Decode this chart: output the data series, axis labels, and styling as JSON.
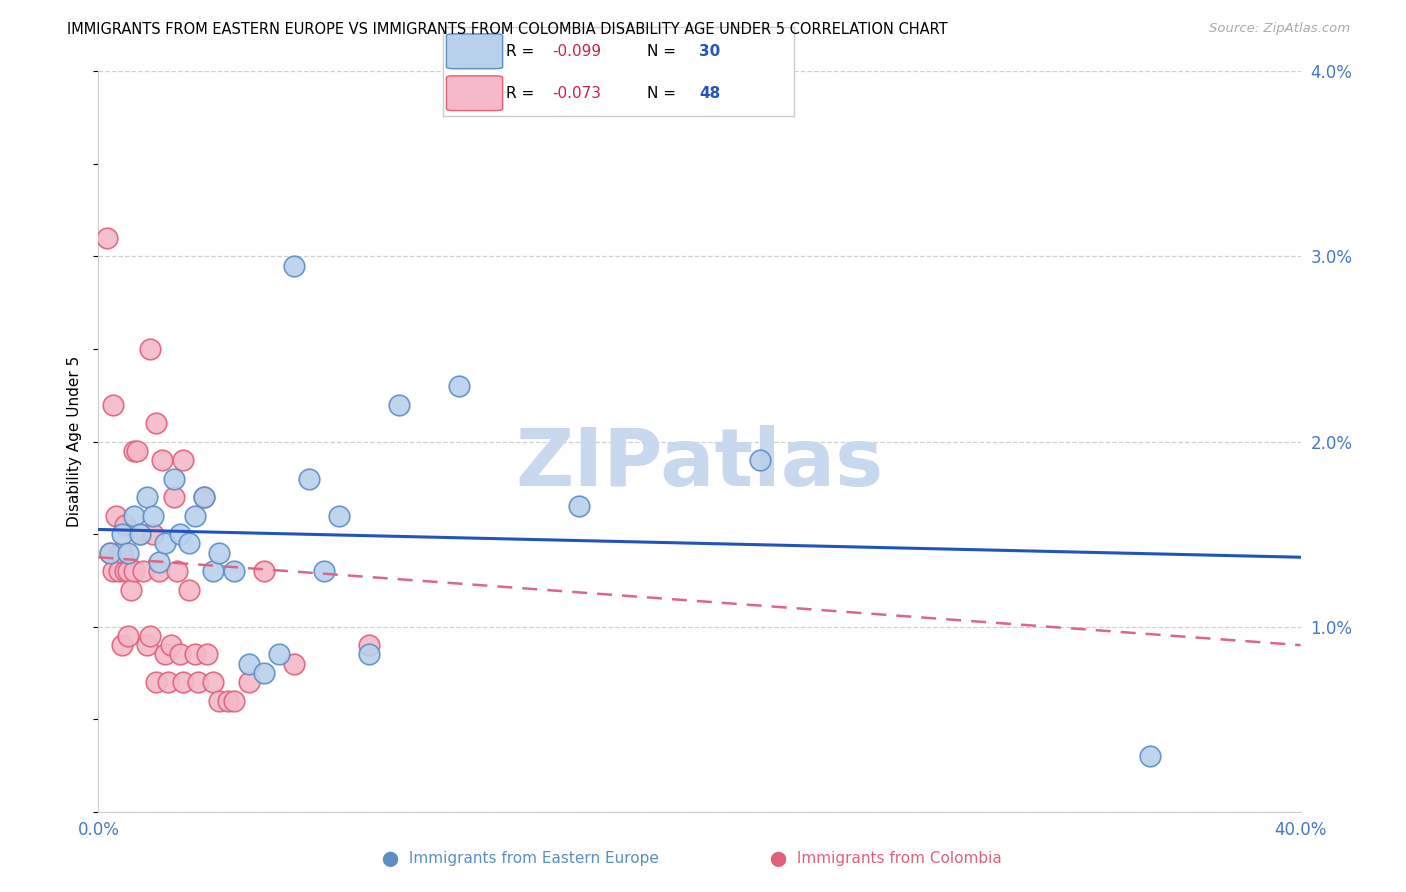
{
  "title": "IMMIGRANTS FROM EASTERN EUROPE VS IMMIGRANTS FROM COLOMBIA DISABILITY AGE UNDER 5 CORRELATION CHART",
  "source": "Source: ZipAtlas.com",
  "ylabel": "Disability Age Under 5",
  "x_min": 0.0,
  "x_max": 0.4,
  "y_min": 0.0,
  "y_max": 0.04,
  "x_ticks": [
    0.0,
    0.1,
    0.2,
    0.3,
    0.4
  ],
  "y_ticks": [
    0.0,
    0.01,
    0.02,
    0.03,
    0.04
  ],
  "y_tick_labels_right": [
    "",
    "1.0%",
    "2.0%",
    "3.0%",
    "4.0%"
  ],
  "series1_color": "#b8d0eb",
  "series1_edge": "#5b8ec4",
  "series2_color": "#f5b8c8",
  "series2_edge": "#e0607a",
  "trendline1_color": "#2255bb",
  "trendline2_color": "#dd6688",
  "r1": "-0.099",
  "n1": "30",
  "r2": "-0.073",
  "n2": "48",
  "watermark_text": "ZIPatlas",
  "watermark_color": "#c8d8ee",
  "blue_scatter_x": [
    0.004,
    0.008,
    0.01,
    0.012,
    0.014,
    0.016,
    0.018,
    0.02,
    0.022,
    0.025,
    0.027,
    0.03,
    0.032,
    0.035,
    0.038,
    0.04,
    0.045,
    0.05,
    0.055,
    0.06,
    0.065,
    0.07,
    0.075,
    0.08,
    0.09,
    0.1,
    0.12,
    0.16,
    0.22,
    0.35
  ],
  "blue_scatter_y": [
    0.014,
    0.015,
    0.014,
    0.016,
    0.015,
    0.017,
    0.016,
    0.0135,
    0.0145,
    0.018,
    0.015,
    0.0145,
    0.016,
    0.017,
    0.013,
    0.014,
    0.013,
    0.008,
    0.0075,
    0.0085,
    0.0295,
    0.018,
    0.013,
    0.016,
    0.0085,
    0.022,
    0.023,
    0.0165,
    0.019,
    0.003
  ],
  "pink_scatter_x": [
    0.003,
    0.004,
    0.005,
    0.005,
    0.006,
    0.007,
    0.007,
    0.008,
    0.008,
    0.009,
    0.009,
    0.01,
    0.01,
    0.011,
    0.012,
    0.012,
    0.013,
    0.014,
    0.015,
    0.016,
    0.017,
    0.017,
    0.018,
    0.019,
    0.019,
    0.02,
    0.021,
    0.022,
    0.023,
    0.024,
    0.025,
    0.026,
    0.027,
    0.028,
    0.028,
    0.03,
    0.032,
    0.033,
    0.035,
    0.036,
    0.038,
    0.04,
    0.043,
    0.045,
    0.05,
    0.055,
    0.065,
    0.09
  ],
  "pink_scatter_y": [
    0.031,
    0.014,
    0.013,
    0.022,
    0.016,
    0.014,
    0.013,
    0.009,
    0.014,
    0.013,
    0.0155,
    0.013,
    0.0095,
    0.012,
    0.0195,
    0.013,
    0.0195,
    0.015,
    0.013,
    0.009,
    0.025,
    0.0095,
    0.015,
    0.021,
    0.007,
    0.013,
    0.019,
    0.0085,
    0.007,
    0.009,
    0.017,
    0.013,
    0.0085,
    0.007,
    0.019,
    0.012,
    0.0085,
    0.007,
    0.017,
    0.0085,
    0.007,
    0.006,
    0.006,
    0.006,
    0.007,
    0.013,
    0.008,
    0.009
  ],
  "trendline1_x": [
    0.0,
    0.4
  ],
  "trendline1_y": [
    0.01525,
    0.01375
  ],
  "trendline2_x": [
    0.0,
    0.4
  ],
  "trendline2_y": [
    0.01375,
    0.009
  ]
}
